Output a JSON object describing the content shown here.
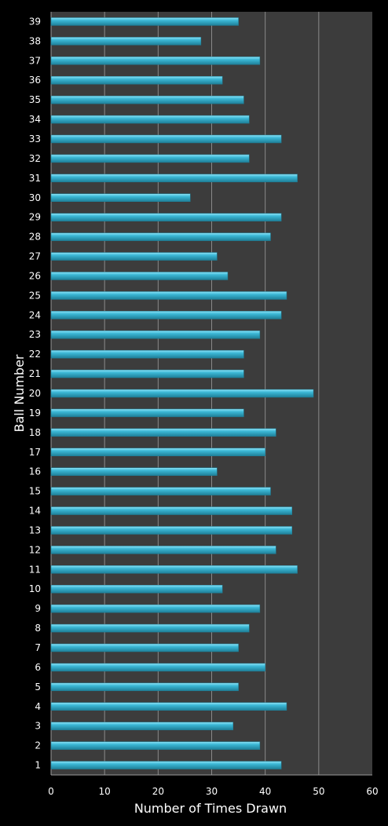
{
  "chart_data": {
    "type": "bar",
    "orientation": "horizontal",
    "xlabel": "Number of Times Drawn",
    "ylabel": "Ball Number",
    "xlim": [
      0,
      60
    ],
    "xticks": [
      "0",
      "10",
      "20",
      "30",
      "40",
      "50",
      "60"
    ],
    "grid": "vertical",
    "legend": "none",
    "categories": [
      "1",
      "2",
      "3",
      "4",
      "5",
      "6",
      "7",
      "8",
      "9",
      "10",
      "11",
      "12",
      "13",
      "14",
      "15",
      "16",
      "17",
      "18",
      "19",
      "20",
      "21",
      "22",
      "23",
      "24",
      "25",
      "26",
      "27",
      "28",
      "29",
      "30",
      "31",
      "32",
      "33",
      "34",
      "35",
      "36",
      "37",
      "38",
      "39"
    ],
    "values": [
      43,
      39,
      34,
      44,
      35,
      40,
      35,
      37,
      39,
      32,
      46,
      42,
      45,
      45,
      41,
      31,
      40,
      42,
      36,
      49,
      36,
      36,
      39,
      43,
      44,
      33,
      31,
      41,
      43,
      26,
      46,
      37,
      43,
      37,
      36,
      32,
      39,
      28,
      35
    ],
    "colors": {
      "background": "#000000",
      "plot_area": "#3c3c3c",
      "gridline": "#8a8a8a",
      "bar_light": "#8fe4f8",
      "bar_mid": "#3cb8d6",
      "bar_dark": "#1e7f98",
      "text": "#ffffff"
    }
  }
}
